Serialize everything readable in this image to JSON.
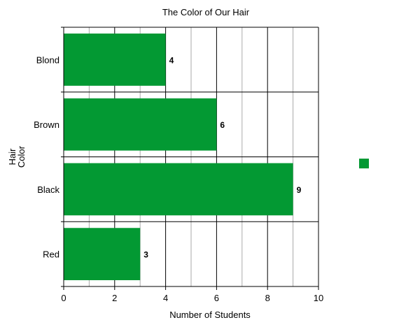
{
  "chart_data": {
    "type": "bar",
    "orientation": "horizontal",
    "title": "The Color of Our Hair",
    "xlabel": "Number of Students",
    "ylabel": "Hair Color",
    "categories": [
      "Blond",
      "Brown",
      "Black",
      "Red"
    ],
    "values": [
      4,
      6,
      9,
      3
    ],
    "data_labels": [
      "4",
      "6",
      "9",
      "3"
    ],
    "xlim": [
      0,
      10
    ],
    "x_ticks": [
      "0",
      "2",
      "4",
      "6",
      "8",
      "10"
    ],
    "grid": true,
    "legend": "right",
    "bar_color": "#039933"
  }
}
